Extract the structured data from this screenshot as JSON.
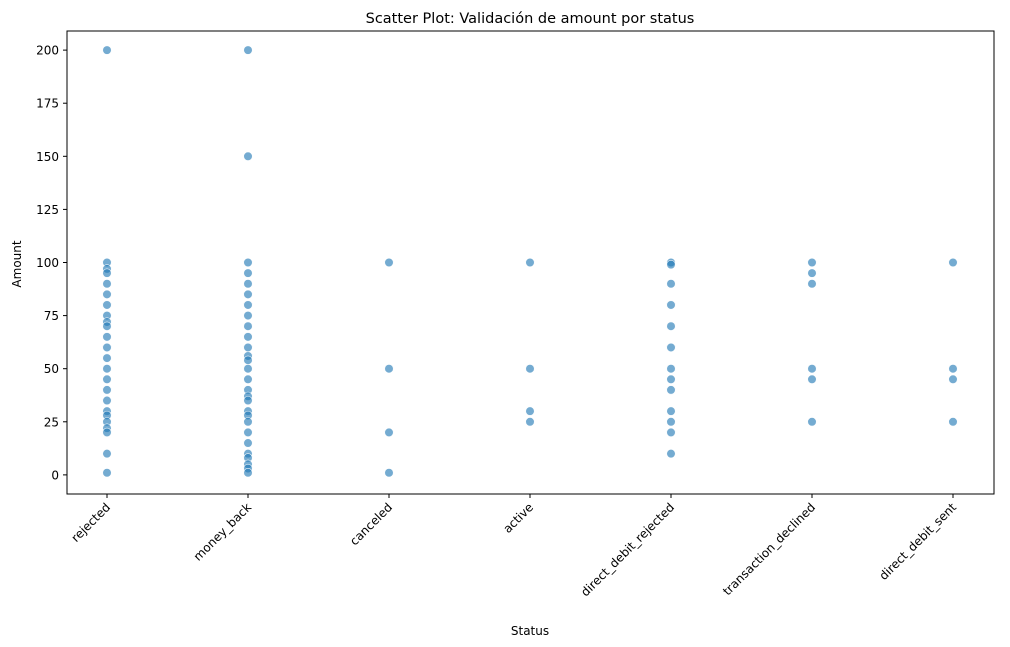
{
  "chart_data": {
    "type": "scatter",
    "title": "Scatter Plot: Validación de amount por status",
    "xlabel": "Status",
    "ylabel": "Amount",
    "categories": [
      "rejected",
      "money_back",
      "canceled",
      "active",
      "direct_debit_rejected",
      "transaction_declined",
      "direct_debit_sent"
    ],
    "ylim": [
      -9,
      209
    ],
    "yticks": [
      0,
      25,
      50,
      75,
      100,
      125,
      150,
      175,
      200
    ],
    "grid": false,
    "legend": "none",
    "marker_color": "#1f77b4",
    "marker_edge_color": "#ffffff",
    "x_tick_rotation": 45,
    "series": [
      {
        "values": [
          {
            "category": "rejected",
            "amounts": [
              200,
              100,
              97,
              95,
              90,
              85,
              80,
              75,
              72,
              70,
              65,
              60,
              55,
              50,
              45,
              40,
              35,
              30,
              28,
              25,
              22,
              20,
              10,
              1
            ]
          },
          {
            "category": "money_back",
            "amounts": [
              200,
              150,
              100,
              95,
              90,
              85,
              80,
              75,
              70,
              65,
              60,
              56,
              54,
              50,
              45,
              40,
              37,
              35,
              30,
              28,
              25,
              20,
              15,
              10,
              8,
              5,
              3,
              1
            ]
          },
          {
            "category": "canceled",
            "amounts": [
              100,
              50,
              20,
              1
            ]
          },
          {
            "category": "active",
            "amounts": [
              100,
              50,
              30,
              25
            ]
          },
          {
            "category": "direct_debit_rejected",
            "amounts": [
              100,
              99,
              90,
              80,
              70,
              60,
              50,
              45,
              40,
              30,
              25,
              20,
              10
            ]
          },
          {
            "category": "transaction_declined",
            "amounts": [
              100,
              95,
              90,
              50,
              45,
              25
            ]
          },
          {
            "category": "direct_debit_sent",
            "amounts": [
              100,
              50,
              45,
              25
            ]
          }
        ]
      }
    ]
  }
}
